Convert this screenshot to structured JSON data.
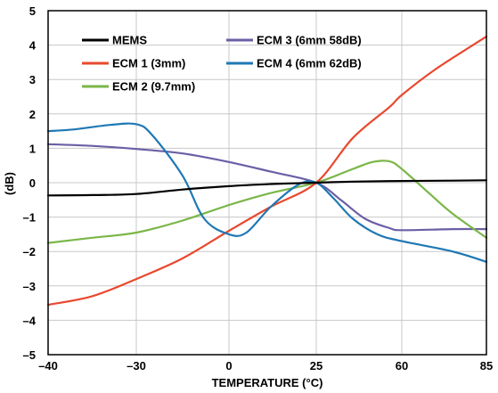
{
  "chart_data": {
    "type": "line",
    "xlabel": "TEMPERATURE (°C)",
    "ylabel": "(dB)",
    "x_ticks": [
      "–40",
      "–30",
      "0",
      "25",
      "60",
      "85"
    ],
    "x_tick_values": [
      -40,
      -30,
      0,
      25,
      60,
      85
    ],
    "y_ticks": [
      5,
      4,
      3,
      2,
      1,
      0,
      -1,
      -2,
      -3,
      -4,
      -5
    ],
    "y_tick_labels": [
      "5",
      "4",
      "3",
      "2",
      "1",
      "0",
      "–1",
      "–2",
      "–3",
      "–4",
      "–5"
    ],
    "ylim": [
      -5,
      5
    ],
    "xlim": [
      -40,
      85
    ],
    "x_scale": "categorical-evenly-spaced ticks",
    "grid": true,
    "legend_position": "top",
    "series": [
      {
        "name": "MEMS",
        "color": "#000000",
        "points": [
          [
            -40,
            -0.37
          ],
          [
            -35,
            -0.36
          ],
          [
            -30,
            -0.33
          ],
          [
            -15,
            -0.2
          ],
          [
            0,
            -0.1
          ],
          [
            12,
            -0.04
          ],
          [
            25,
            0.0
          ],
          [
            40,
            0.03
          ],
          [
            60,
            0.05
          ],
          [
            75,
            0.06
          ],
          [
            85,
            0.07
          ]
        ]
      },
      {
        "name": "ECM 1 (3mm)",
        "color": "#e8492f",
        "points": [
          [
            -40,
            -3.55
          ],
          [
            -35,
            -3.3
          ],
          [
            -30,
            -2.8
          ],
          [
            -15,
            -2.2
          ],
          [
            0,
            -1.4
          ],
          [
            12,
            -0.7
          ],
          [
            25,
            0.0
          ],
          [
            40,
            1.3
          ],
          [
            55,
            2.2
          ],
          [
            60,
            2.55
          ],
          [
            70,
            3.3
          ],
          [
            85,
            4.25
          ]
        ]
      },
      {
        "name": "ECM 2 (9.7mm)",
        "color": "#7ab648",
        "points": [
          [
            -40,
            -1.75
          ],
          [
            -35,
            -1.6
          ],
          [
            -30,
            -1.45
          ],
          [
            -15,
            -1.1
          ],
          [
            0,
            -0.65
          ],
          [
            12,
            -0.3
          ],
          [
            25,
            0.0
          ],
          [
            40,
            0.4
          ],
          [
            48,
            0.6
          ],
          [
            55,
            0.62
          ],
          [
            60,
            0.4
          ],
          [
            68,
            -0.3
          ],
          [
            75,
            -0.9
          ],
          [
            85,
            -1.6
          ]
        ]
      },
      {
        "name": "ECM 3 (6mm 58dB)",
        "color": "#6b5fa6",
        "points": [
          [
            -40,
            1.12
          ],
          [
            -35,
            1.07
          ],
          [
            -30,
            0.98
          ],
          [
            -15,
            0.85
          ],
          [
            0,
            0.6
          ],
          [
            12,
            0.32
          ],
          [
            25,
            0.0
          ],
          [
            35,
            -0.5
          ],
          [
            45,
            -1.05
          ],
          [
            55,
            -1.32
          ],
          [
            60,
            -1.38
          ],
          [
            75,
            -1.35
          ],
          [
            85,
            -1.35
          ]
        ]
      },
      {
        "name": "ECM 4 (6mm 62dB)",
        "color": "#1f78b4",
        "points": [
          [
            -40,
            1.5
          ],
          [
            -37,
            1.55
          ],
          [
            -33,
            1.68
          ],
          [
            -30,
            1.7
          ],
          [
            -25,
            1.4
          ],
          [
            -15,
            0.2
          ],
          [
            -8,
            -1.05
          ],
          [
            0,
            -1.5
          ],
          [
            5,
            -1.45
          ],
          [
            12,
            -0.7
          ],
          [
            20,
            -0.05
          ],
          [
            25,
            0.0
          ],
          [
            32,
            -0.45
          ],
          [
            40,
            -1.05
          ],
          [
            50,
            -1.5
          ],
          [
            60,
            -1.7
          ],
          [
            75,
            -2.0
          ],
          [
            85,
            -2.3
          ]
        ]
      }
    ]
  }
}
